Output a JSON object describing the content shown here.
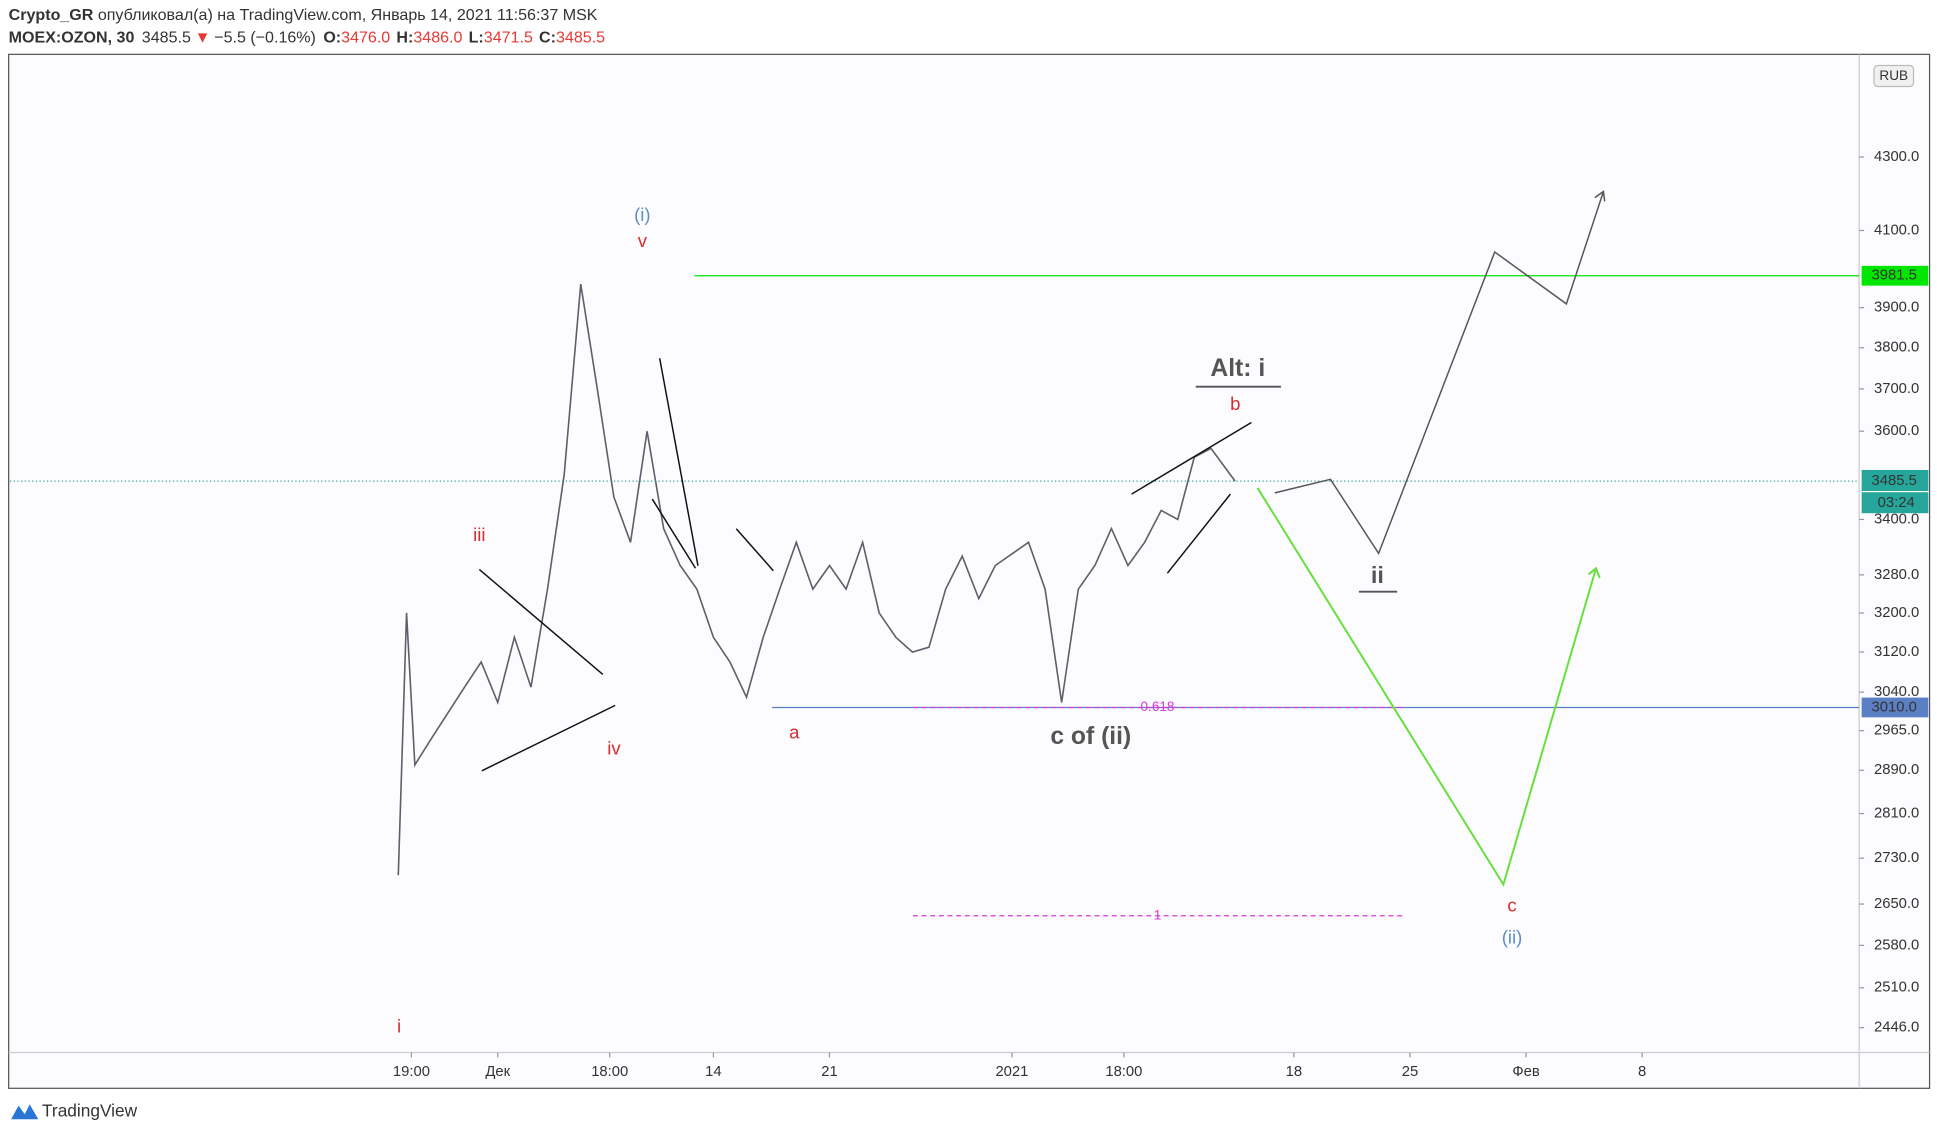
{
  "header": {
    "author": "Crypto_GR",
    "published": " опубликовал(а) на TradingView.com, Январь 14, 2021 11:56:37 MSK",
    "symbol": "MOEX:OZON, 30",
    "last": "3485.5",
    "arrow": "▼",
    "change": "−5.5 (−0.16%)",
    "o_label": "O:",
    "o": "3476.0",
    "h_label": "H:",
    "h": "3486.0",
    "l_label": "L:",
    "l": "3471.5",
    "c_label": "C:",
    "c": "3485.5"
  },
  "footer": {
    "brand": "TradingView"
  },
  "chart_data": {
    "type": "line",
    "color": "#5d606b",
    "log_scale": true,
    "currency": "RUB",
    "x": [
      "2020-11-25T00:00",
      "2020-11-25T12:00",
      "2020-11-26T00:00",
      "2020-11-27T00:00",
      "2020-11-28T00:00",
      "2020-11-29T00:00",
      "2020-11-30T00:00",
      "2020-12-01T00:00",
      "2020-12-02T00:00",
      "2020-12-03T00:00",
      "2020-12-04T00:00",
      "2020-12-05T00:00",
      "2020-12-06T00:00",
      "2020-12-07T00:00",
      "2020-12-08T00:00",
      "2020-12-09T00:00",
      "2020-12-10T00:00",
      "2020-12-11T00:00",
      "2020-12-12T00:00",
      "2020-12-13T00:00",
      "2020-12-14T00:00",
      "2020-12-15T00:00",
      "2020-12-16T00:00",
      "2020-12-17T00:00",
      "2020-12-18T00:00",
      "2020-12-19T00:00",
      "2020-12-20T00:00",
      "2020-12-21T00:00",
      "2020-12-22T00:00",
      "2020-12-23T00:00",
      "2020-12-24T00:00",
      "2020-12-25T00:00",
      "2020-12-26T00:00",
      "2020-12-27T00:00",
      "2020-12-28T00:00",
      "2020-12-29T00:00",
      "2020-12-30T00:00",
      "2020-12-31T00:00",
      "2021-01-02T00:00",
      "2021-01-03T00:00",
      "2021-01-04T00:00",
      "2021-01-05T00:00",
      "2021-01-06T00:00",
      "2021-01-07T00:00",
      "2021-01-08T00:00",
      "2021-01-09T00:00",
      "2021-01-10T00:00",
      "2021-01-11T00:00",
      "2021-01-12T00:00",
      "2021-01-13T00:00",
      "2021-01-14T11:00"
    ],
    "values": [
      2700,
      3200,
      2900,
      2950,
      3000,
      3050,
      3100,
      3020,
      3150,
      3050,
      3250,
      3500,
      3960,
      3700,
      3450,
      3350,
      3600,
      3380,
      3300,
      3250,
      3150,
      3100,
      3030,
      3150,
      3250,
      3350,
      3250,
      3300,
      3250,
      3350,
      3200,
      3150,
      3120,
      3130,
      3250,
      3320,
      3230,
      3300,
      3350,
      3250,
      3020,
      3250,
      3300,
      3380,
      3300,
      3350,
      3420,
      3400,
      3540,
      3560,
      3485.5
    ],
    "xlim": [
      "2020-11-01T14:00",
      "2021-02-21T02:00"
    ],
    "ylim": [
      2407,
      4592
    ],
    "xticks": [
      {
        "value": "2020-11-25T19:00",
        "label": "19:00"
      },
      {
        "value": "2020-12-01T00:00",
        "label": "Дек"
      },
      {
        "value": "2020-12-07T18:00",
        "label": "18:00"
      },
      {
        "value": "2020-12-14T00:00",
        "label": "14"
      },
      {
        "value": "2020-12-21T00:00",
        "label": "21"
      },
      {
        "value": "2021-01-01T00:00",
        "label": "2021"
      },
      {
        "value": "2021-01-07T18:00",
        "label": "18:00"
      },
      {
        "value": "2021-01-18T00:00",
        "label": "18"
      },
      {
        "value": "2021-01-25T00:00",
        "label": "25"
      },
      {
        "value": "2021-02-01T00:00",
        "label": "Фев"
      },
      {
        "value": "2021-02-08T00:00",
        "label": "8"
      }
    ],
    "yticks": [
      {
        "value": 4300,
        "label": "4300.0"
      },
      {
        "value": 4100,
        "label": "4100.0"
      },
      {
        "value": 3900,
        "label": "3900.0"
      },
      {
        "value": 3800,
        "label": "3800.0"
      },
      {
        "value": 3700,
        "label": "3700.0"
      },
      {
        "value": 3600,
        "label": "3600.0"
      },
      {
        "value": 3400,
        "label": "3400.0"
      },
      {
        "value": 3280,
        "label": "3280.0"
      },
      {
        "value": 3200,
        "label": "3200.0"
      },
      {
        "value": 3120,
        "label": "3120.0"
      },
      {
        "value": 3040,
        "label": "3040.0"
      },
      {
        "value": 2965,
        "label": "2965.0"
      },
      {
        "value": 2890,
        "label": "2890.0"
      },
      {
        "value": 2810,
        "label": "2810.0"
      },
      {
        "value": 2730,
        "label": "2730.0"
      },
      {
        "value": 2650,
        "label": "2650.0"
      },
      {
        "value": 2580,
        "label": "2580.0"
      },
      {
        "value": 2510,
        "label": "2510.0"
      },
      {
        "value": 2446,
        "label": "2446.0"
      }
    ],
    "last_price": 3485.5,
    "countdown": "03:24",
    "levels": [
      {
        "price": 3981.5,
        "color": "#00e600"
      },
      {
        "price": 3010,
        "price_label": "3010.0",
        "color": "#5b7fc4"
      }
    ],
    "fib_levels": [
      {
        "level": 0.618,
        "price": 3010
      },
      {
        "level": 1,
        "price": 2630
      }
    ],
    "annotations": [
      {
        "text": "(i)",
        "color": "#5b8fc7"
      },
      {
        "text": "v",
        "color": "#d32f2f"
      },
      {
        "text": "iii",
        "color": "#d32f2f"
      },
      {
        "text": "iv",
        "color": "#d32f2f"
      },
      {
        "text": "a",
        "color": "#d32f2f"
      },
      {
        "text": "c of (ii)",
        "color": "#555555"
      },
      {
        "text": "Alt: i",
        "color": "#555555"
      },
      {
        "text": "b",
        "color": "#d32f2f"
      },
      {
        "text": "ii",
        "color": "#555555"
      },
      {
        "text": "c",
        "color": "#d32f2f"
      },
      {
        "text": "(ii)",
        "color": "#5b8fc7"
      },
      {
        "text": "i",
        "color": "#d32f2f"
      }
    ]
  }
}
